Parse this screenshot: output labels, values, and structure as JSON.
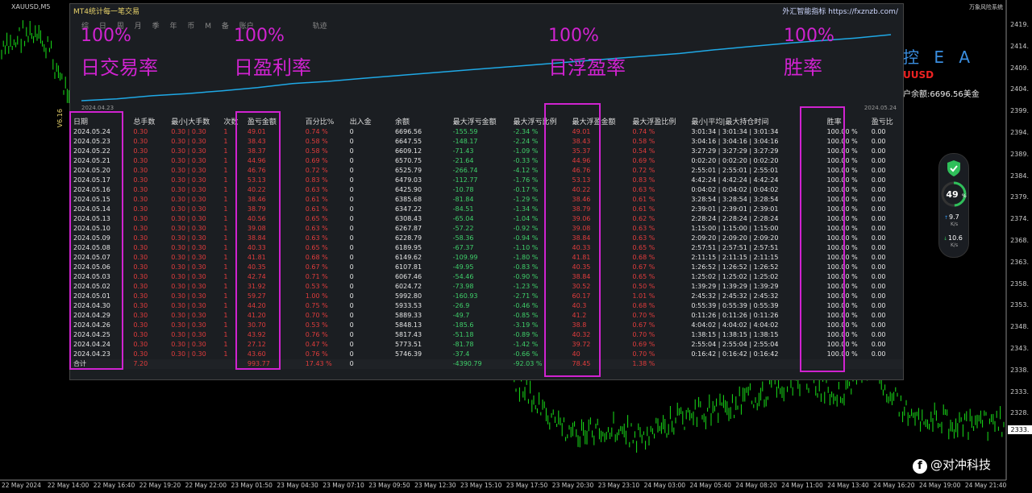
{
  "symbol_bar": {
    "symbol": "XAUUSD,M5",
    "brand": "万象风险系统"
  },
  "price_axis": [
    "2419.",
    "2414.",
    "2409.",
    "2404.",
    "2399.",
    "2394.",
    "2389.",
    "2384.",
    "2379.",
    "2374.",
    "2368.",
    "2363.",
    "2358.",
    "2353.",
    "2348.",
    "2343.",
    "2338.",
    "2333.",
    "2328."
  ],
  "current_price": "2333.",
  "time_axis": [
    "22 May 2024",
    "22 May 14:00",
    "22 May 16:40",
    "22 May 19:20",
    "22 May 22:00",
    "23 May 01:50",
    "23 May 04:30",
    "23 May 07:10",
    "23 May 09:50",
    "23 May 12:30",
    "23 May 15:10",
    "23 May 17:50",
    "23 May 20:30",
    "23 May 23:10",
    "24 May 03:00",
    "24 May 05:40",
    "24 May 08:20",
    "24 May 11:00",
    "24 May 13:40",
    "24 May 16:20",
    "24 May 19:00",
    "24 May 21:40"
  ],
  "panel": {
    "title": "MT4统计每一笔交易",
    "link": "外汇智能指标  https://fxznzb.com/",
    "tabs": [
      "综",
      "日",
      "周",
      "月",
      "季",
      "年",
      "币",
      "M",
      "备",
      "账户"
    ],
    "traj_tab": "轨迹",
    "date_start": "2024.04.23",
    "date_end": "2024.05.24",
    "colors": {
      "curve": "#1fa9e6",
      "red": "#e23c3c",
      "green": "#3fd06a",
      "highlight": "#d023d0"
    }
  },
  "equity_curve": [
    5746.39,
    5773.51,
    5817.43,
    5848.13,
    5889.33,
    5933.53,
    5992.8,
    6024.72,
    6067.46,
    6107.81,
    6149.62,
    6189.95,
    6228.79,
    6267.87,
    6308.43,
    6347.22,
    6385.68,
    6425.9,
    6479.03,
    6525.79,
    6570.75,
    6609.12,
    6647.55,
    6696.56
  ],
  "table": {
    "headers": [
      "日期",
      "总手数",
      "最小|大手数",
      "次数",
      "盈亏金额",
      "百分比%",
      "出入金",
      "余额",
      "最大浮亏金额",
      "最大浮亏比例",
      "最大浮盈金额",
      "最大浮盈比例",
      "最小|平均|最大持仓时间",
      "胜率",
      "盈亏比"
    ],
    "rows": [
      [
        "2024.05.24",
        "0.30",
        "0.30 | 0.30",
        "1",
        "49.01",
        "0.74 %",
        "0",
        "6696.56",
        "-155.59",
        "-2.34 %",
        "49.01",
        "0.74 %",
        "3:01:34 | 3:01:34 | 3:01:34",
        "100.00 %",
        "0.00"
      ],
      [
        "2024.05.23",
        "0.30",
        "0.30 | 0.30",
        "1",
        "38.43",
        "0.58 %",
        "0",
        "6647.55",
        "-148.17",
        "-2.24 %",
        "38.43",
        "0.58 %",
        "3:04:16 | 3:04:16 | 3:04:16",
        "100.00 %",
        "0.00"
      ],
      [
        "2024.05.22",
        "0.30",
        "0.30 | 0.30",
        "1",
        "38.37",
        "0.58 %",
        "0",
        "6609.12",
        "-71.43",
        "-1.09 %",
        "35.37",
        "0.54 %",
        "3:27:29 | 3:27:29 | 3:27:29",
        "100.00 %",
        "0.00"
      ],
      [
        "2024.05.21",
        "0.30",
        "0.30 | 0.30",
        "1",
        "44.96",
        "0.69 %",
        "0",
        "6570.75",
        "-21.64",
        "-0.33 %",
        "44.96",
        "0.69 %",
        "0:02:20 | 0:02:20 | 0:02:20",
        "100.00 %",
        "0.00"
      ],
      [
        "2024.05.20",
        "0.30",
        "0.30 | 0.30",
        "1",
        "46.76",
        "0.72 %",
        "0",
        "6525.79",
        "-266.74",
        "-4.12 %",
        "46.76",
        "0.72 %",
        "2:55:01 | 2:55:01 | 2:55:01",
        "100.00 %",
        "0.00"
      ],
      [
        "2024.05.17",
        "0.30",
        "0.30 | 0.30",
        "1",
        "53.13",
        "0.83 %",
        "0",
        "6479.03",
        "-112.77",
        "-1.76 %",
        "53.13",
        "0.83 %",
        "4:42:24 | 4:42:24 | 4:42:24",
        "100.00 %",
        "0.00"
      ],
      [
        "2024.05.16",
        "0.30",
        "0.30 | 0.30",
        "1",
        "40.22",
        "0.63 %",
        "0",
        "6425.90",
        "-10.78",
        "-0.17 %",
        "40.22",
        "0.63 %",
        "0:04:02 | 0:04:02 | 0:04:02",
        "100.00 %",
        "0.00"
      ],
      [
        "2024.05.15",
        "0.30",
        "0.30 | 0.30",
        "1",
        "38.46",
        "0.61 %",
        "0",
        "6385.68",
        "-81.84",
        "-1.29 %",
        "38.46",
        "0.61 %",
        "3:28:54 | 3:28:54 | 3:28:54",
        "100.00 %",
        "0.00"
      ],
      [
        "2024.05.14",
        "0.30",
        "0.30 | 0.30",
        "1",
        "38.79",
        "0.61 %",
        "0",
        "6347.22",
        "-84.51",
        "-1.34 %",
        "38.79",
        "0.61 %",
        "2:39:01 | 2:39:01 | 2:39:01",
        "100.00 %",
        "0.00"
      ],
      [
        "2024.05.13",
        "0.30",
        "0.30 | 0.30",
        "1",
        "40.56",
        "0.65 %",
        "0",
        "6308.43",
        "-65.04",
        "-1.04 %",
        "39.06",
        "0.62 %",
        "2:28:24 | 2:28:24 | 2:28:24",
        "100.00 %",
        "0.00"
      ],
      [
        "2024.05.10",
        "0.30",
        "0.30 | 0.30",
        "1",
        "39.08",
        "0.63 %",
        "0",
        "6267.87",
        "-57.22",
        "-0.92 %",
        "39.08",
        "0.63 %",
        "1:15:00 | 1:15:00 | 1:15:00",
        "100.00 %",
        "0.00"
      ],
      [
        "2024.05.09",
        "0.30",
        "0.30 | 0.30",
        "1",
        "38.84",
        "0.63 %",
        "0",
        "6228.79",
        "-58.36",
        "-0.94 %",
        "38.84",
        "0.63 %",
        "2:09:20 | 2:09:20 | 2:09:20",
        "100.00 %",
        "0.00"
      ],
      [
        "2024.05.08",
        "0.30",
        "0.30 | 0.30",
        "1",
        "40.33",
        "0.65 %",
        "0",
        "6189.95",
        "-67.37",
        "-1.10 %",
        "40.33",
        "0.65 %",
        "2:57:51 | 2:57:51 | 2:57:51",
        "100.00 %",
        "0.00"
      ],
      [
        "2024.05.07",
        "0.30",
        "0.30 | 0.30",
        "1",
        "41.81",
        "0.68 %",
        "0",
        "6149.62",
        "-109.99",
        "-1.80 %",
        "41.81",
        "0.68 %",
        "2:11:15 | 2:11:15 | 2:11:15",
        "100.00 %",
        "0.00"
      ],
      [
        "2024.05.06",
        "0.30",
        "0.30 | 0.30",
        "1",
        "40.35",
        "0.67 %",
        "0",
        "6107.81",
        "-49.95",
        "-0.83 %",
        "40.35",
        "0.67 %",
        "1:26:52 | 1:26:52 | 1:26:52",
        "100.00 %",
        "0.00"
      ],
      [
        "2024.05.03",
        "0.30",
        "0.30 | 0.30",
        "1",
        "42.74",
        "0.71 %",
        "0",
        "6067.46",
        "-54.46",
        "-0.90 %",
        "38.84",
        "0.65 %",
        "1:25:02 | 1:25:02 | 1:25:02",
        "100.00 %",
        "0.00"
      ],
      [
        "2024.05.02",
        "0.30",
        "0.30 | 0.30",
        "1",
        "31.92",
        "0.53 %",
        "0",
        "6024.72",
        "-73.98",
        "-1.23 %",
        "30.52",
        "0.50 %",
        "1:39:29 | 1:39:29 | 1:39:29",
        "100.00 %",
        "0.00"
      ],
      [
        "2024.05.01",
        "0.30",
        "0.30 | 0.30",
        "1",
        "59.27",
        "1.00 %",
        "0",
        "5992.80",
        "-160.93",
        "-2.71 %",
        "60.17",
        "1.01 %",
        "2:45:32 | 2:45:32 | 2:45:32",
        "100.00 %",
        "0.00"
      ],
      [
        "2024.04.30",
        "0.30",
        "0.30 | 0.30",
        "1",
        "44.20",
        "0.75 %",
        "0",
        "5933.53",
        "-26.9",
        "-0.46 %",
        "40.3",
        "0.68 %",
        "0:55:39 | 0:55:39 | 0:55:39",
        "100.00 %",
        "0.00"
      ],
      [
        "2024.04.29",
        "0.30",
        "0.30 | 0.30",
        "1",
        "41.20",
        "0.70 %",
        "0",
        "5889.33",
        "-49.7",
        "-0.85 %",
        "41.2",
        "0.70 %",
        "0:11:26 | 0:11:26 | 0:11:26",
        "100.00 %",
        "0.00"
      ],
      [
        "2024.04.26",
        "0.30",
        "0.30 | 0.30",
        "1",
        "30.70",
        "0.53 %",
        "0",
        "5848.13",
        "-185.6",
        "-3.19 %",
        "38.8",
        "0.67 %",
        "4:04:02 | 4:04:02 | 4:04:02",
        "100.00 %",
        "0.00"
      ],
      [
        "2024.04.25",
        "0.30",
        "0.30 | 0.30",
        "1",
        "43.92",
        "0.76 %",
        "0",
        "5817.43",
        "-51.18",
        "-0.89 %",
        "40.32",
        "0.70 %",
        "1:38:15 | 1:38:15 | 1:38:15",
        "100.00 %",
        "0.00"
      ],
      [
        "2024.04.24",
        "0.30",
        "0.30 | 0.30",
        "1",
        "27.12",
        "0.47 %",
        "0",
        "5773.51",
        "-81.78",
        "-1.42 %",
        "39.72",
        "0.69 %",
        "2:55:04 | 2:55:04 | 2:55:04",
        "100.00 %",
        "0.00"
      ],
      [
        "2024.04.23",
        "0.30",
        "0.30 | 0.30",
        "1",
        "43.60",
        "0.76 %",
        "0",
        "5746.39",
        "-37.4",
        "-0.66 %",
        "40",
        "0.70 %",
        "0:16:42 | 0:16:42 | 0:16:42",
        "100.00 %",
        "0.00"
      ]
    ],
    "total": [
      "合计",
      "7.20",
      "",
      "",
      "993.77",
      "17.43 %",
      "0",
      "",
      "-4390.79",
      "-92.03 %",
      "78.45",
      "1.38 %",
      "",
      "",
      ""
    ]
  },
  "overlays": [
    {
      "pct": "100%",
      "label": "日交易率"
    },
    {
      "pct": "100%",
      "label": "日盈利率"
    },
    {
      "pct": "100%",
      "label": "日浮盈率"
    },
    {
      "pct": "100%",
      "label": "胜率"
    }
  ],
  "ea_side": {
    "title": "控 E A",
    "symbol": "UUSD",
    "balance": "户余额:6696.56美金"
  },
  "vertical_label": "V6.16",
  "widget": {
    "percent": "49",
    "pct_sign": "%",
    "up_speed": "9.7",
    "up_unit": "K/s",
    "down_speed": "10.6",
    "down_unit": "K/s"
  },
  "watermark": "@对冲科技"
}
